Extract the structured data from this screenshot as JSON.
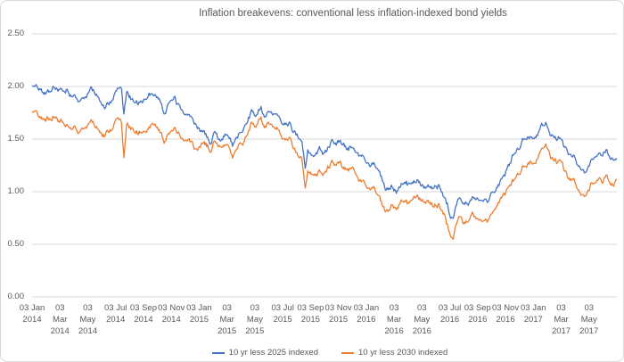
{
  "chart": {
    "y_axis": {
      "tick_labels": [
        "2.50",
        "2.00",
        "1.50",
        "1.00",
        "0.50",
        "0.00"
      ],
      "tick_values": [
        2.5,
        2.0,
        1.5,
        1.0,
        0.5,
        0.0
      ]
    },
    "x_axis": {
      "tick_lines": [
        [
          "03 Jan",
          "2014"
        ],
        [
          "03",
          "Mar",
          "2014"
        ],
        [
          "03",
          "May",
          "2014"
        ],
        [
          "03 Jul",
          "2014"
        ],
        [
          "03 Sep",
          "2014"
        ],
        [
          "03 Nov",
          "2014"
        ],
        [
          "03 Jan",
          "2015"
        ],
        [
          "03",
          "Mar",
          "2015"
        ],
        [
          "03",
          "May",
          "2015"
        ],
        [
          "03 Jul",
          "2015"
        ],
        [
          "03 Sep",
          "2015"
        ],
        [
          "03 Nov",
          "2015"
        ],
        [
          "03 Jan",
          "2016"
        ],
        [
          "03",
          "Mar",
          "2016"
        ],
        [
          "03",
          "May",
          "2016"
        ],
        [
          "03 Jul",
          "2016"
        ],
        [
          "03 Sep",
          "2016"
        ],
        [
          "03 Nov",
          "2016"
        ],
        [
          "03 Jan",
          "2017"
        ],
        [
          "03",
          "Mar",
          "2017"
        ],
        [
          "03",
          "May",
          "2017"
        ]
      ]
    }
  },
  "colors": {
    "series_blue": "#4472C4",
    "series_orange": "#ED7D31",
    "gridline": "#D9D9D9",
    "text": "#595959",
    "frame_border": "#D9D9D9"
  },
  "chart_data": {
    "type": "line",
    "title": "Inflation breakevens: conventional less inflation-indexed bond yields",
    "xlabel": "",
    "ylabel": "",
    "ylim": [
      0,
      2.5
    ],
    "grid": "horizontal",
    "legend_position": "bottom",
    "x_unit": "months since 03 Jan 2014 (sampled keypoints read from daily series)",
    "x_range_months": [
      0,
      42
    ],
    "x": [
      0,
      0.4,
      1,
      1.5,
      2,
      2.5,
      3,
      3.7,
      4.3,
      4.8,
      5.2,
      5.6,
      6,
      6.4,
      6.6,
      6.8,
      7.3,
      7.8,
      8.3,
      8.8,
      9.2,
      9.5,
      9.8,
      10.2,
      10.7,
      11.2,
      11.7,
      12.2,
      12.6,
      12.8,
      13.1,
      13.5,
      14,
      14.4,
      14.8,
      15.3,
      15.8,
      16.1,
      16.4,
      16.7,
      17,
      17.4,
      17.8,
      18.2,
      18.6,
      19,
      19.4,
      19.63,
      19.8,
      20.2,
      20.6,
      21,
      21.5,
      22,
      22.5,
      23,
      23.5,
      24,
      24.5,
      25,
      25.4,
      25.8,
      26.2,
      26.7,
      27.2,
      27.7,
      28.2,
      28.7,
      29.2,
      29.6,
      30,
      30.25,
      30.5,
      30.8,
      31.2,
      31.6,
      32,
      32.4,
      32.8,
      33.2,
      33.6,
      34,
      34.5,
      35,
      35.5,
      36,
      36.5,
      36.9,
      37.3,
      37.7,
      38.1,
      38.5,
      39,
      39.4,
      39.8,
      40.2,
      40.6,
      41,
      41.3,
      41.6,
      42
    ],
    "series": [
      {
        "name": "10 yr less 2025 indexed",
        "color": "#4472C4",
        "values": [
          2.0,
          2.02,
          1.95,
          1.99,
          1.95,
          1.97,
          1.92,
          1.86,
          1.95,
          1.9,
          1.81,
          1.88,
          1.94,
          1.95,
          1.7,
          1.92,
          1.87,
          1.85,
          1.92,
          1.96,
          1.88,
          1.74,
          1.83,
          1.84,
          1.79,
          1.73,
          1.65,
          1.57,
          1.5,
          1.44,
          1.55,
          1.52,
          1.55,
          1.42,
          1.55,
          1.62,
          1.76,
          1.7,
          1.8,
          1.72,
          1.77,
          1.67,
          1.71,
          1.64,
          1.63,
          1.56,
          1.44,
          1.2,
          1.4,
          1.35,
          1.41,
          1.37,
          1.44,
          1.46,
          1.41,
          1.44,
          1.37,
          1.31,
          1.27,
          1.16,
          1.01,
          1.07,
          1.03,
          1.08,
          1.05,
          1.1,
          1.04,
          1.04,
          1.07,
          0.97,
          0.8,
          0.71,
          0.83,
          0.93,
          0.89,
          0.94,
          0.9,
          0.94,
          0.91,
          0.99,
          1.08,
          1.16,
          1.3,
          1.43,
          1.51,
          1.55,
          1.6,
          1.65,
          1.56,
          1.53,
          1.47,
          1.39,
          1.33,
          1.26,
          1.18,
          1.3,
          1.41,
          1.38,
          1.42,
          1.34,
          1.3
        ]
      },
      {
        "name": "10 yr less 2030 indexed",
        "color": "#ED7D31",
        "values": [
          1.74,
          1.76,
          1.69,
          1.71,
          1.67,
          1.66,
          1.63,
          1.58,
          1.64,
          1.6,
          1.56,
          1.6,
          1.66,
          1.65,
          1.31,
          1.63,
          1.58,
          1.57,
          1.62,
          1.65,
          1.58,
          1.47,
          1.54,
          1.55,
          1.51,
          1.48,
          1.44,
          1.44,
          1.4,
          1.37,
          1.46,
          1.44,
          1.45,
          1.32,
          1.46,
          1.52,
          1.65,
          1.61,
          1.71,
          1.63,
          1.67,
          1.57,
          1.59,
          1.48,
          1.47,
          1.38,
          1.27,
          1.03,
          1.23,
          1.17,
          1.22,
          1.18,
          1.24,
          1.26,
          1.2,
          1.23,
          1.14,
          1.09,
          1.04,
          0.93,
          0.8,
          0.87,
          0.86,
          0.91,
          0.88,
          0.93,
          0.88,
          0.87,
          0.9,
          0.8,
          0.62,
          0.53,
          0.67,
          0.77,
          0.72,
          0.77,
          0.73,
          0.76,
          0.74,
          0.82,
          0.89,
          0.96,
          1.08,
          1.2,
          1.27,
          1.31,
          1.36,
          1.41,
          1.33,
          1.3,
          1.25,
          1.15,
          1.08,
          1.01,
          0.96,
          1.07,
          1.18,
          1.13,
          1.19,
          1.08,
          1.09
        ]
      }
    ]
  }
}
